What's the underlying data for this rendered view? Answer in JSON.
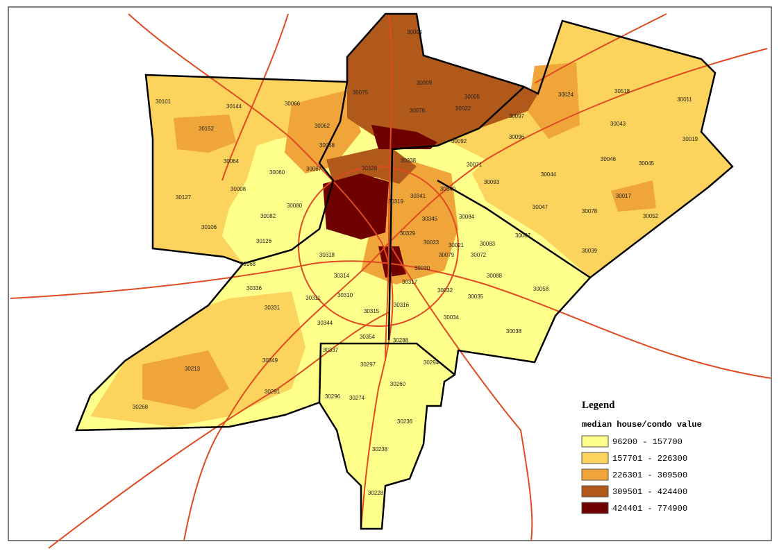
{
  "legend": {
    "title": "Legend",
    "subtitle": "median house/condo value",
    "classes": [
      {
        "label": "96200 - 157700",
        "color": "#ffff8c"
      },
      {
        "label": "157701 - 226300",
        "color": "#fcd35c"
      },
      {
        "label": "226301 - 309500",
        "color": "#f0a53a"
      },
      {
        "label": "309501 - 424400",
        "color": "#b0591a"
      },
      {
        "label": "424401 - 774900",
        "color": "#6e0000"
      }
    ]
  },
  "zip_labels": [
    "30004",
    "30009",
    "30005",
    "30075",
    "30076",
    "30022",
    "30097",
    "30024",
    "30518",
    "30011",
    "30043",
    "30019",
    "30101",
    "30144",
    "30066",
    "30152",
    "30062",
    "30068",
    "30092",
    "30096",
    "30064",
    "30060",
    "30067",
    "30328",
    "30338",
    "30071",
    "30046",
    "30045",
    "30044",
    "30008",
    "30127",
    "30080",
    "30319",
    "30341",
    "30340",
    "30093",
    "30017",
    "30047",
    "30078",
    "30052",
    "30106",
    "30082",
    "30345",
    "30084",
    "30126",
    "30329",
    "30033",
    "30021",
    "30083",
    "30087",
    "30039",
    "30318",
    "30030",
    "30079",
    "30072",
    "30168",
    "30314",
    "30317",
    "30088",
    "30336",
    "30032",
    "30035",
    "30058",
    "30311",
    "30310",
    "30331",
    "30316",
    "30315",
    "30034",
    "30344",
    "30038",
    "30354",
    "30288",
    "30337",
    "30297",
    "30294",
    "30213",
    "30349",
    "30260",
    "30291",
    "30296",
    "30274",
    "30236",
    "30268",
    "30238",
    "30228"
  ]
}
